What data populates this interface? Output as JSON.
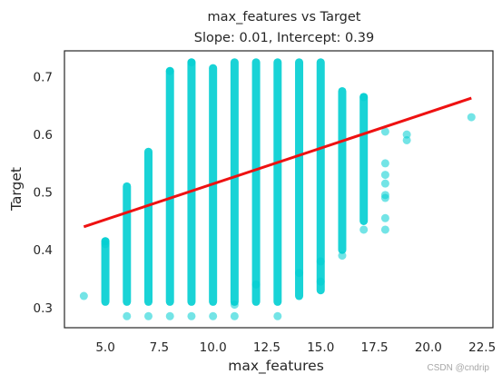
{
  "chart_data": {
    "type": "scatter",
    "title": "max_features vs Target",
    "subtitle": "Slope: 0.01, Intercept: 0.39",
    "xlabel": "max_features",
    "ylabel": "Target",
    "xlim": [
      3.1,
      23.0
    ],
    "ylim": [
      0.265,
      0.745
    ],
    "xticks": [
      5.0,
      7.5,
      10.0,
      12.5,
      15.0,
      17.5,
      20.0,
      22.5
    ],
    "xtick_labels": [
      "5.0",
      "7.5",
      "10.0",
      "12.5",
      "15.0",
      "17.5",
      "20.0",
      "22.5"
    ],
    "yticks": [
      0.3,
      0.4,
      0.5,
      0.6,
      0.7
    ],
    "ytick_labels": [
      "0.3",
      "0.4",
      "0.5",
      "0.6",
      "0.7"
    ],
    "grid": false,
    "point_color": "#00ced1",
    "line_color": "#ee1111",
    "regression": {
      "x": [
        4,
        22
      ],
      "y": [
        0.44,
        0.663
      ]
    },
    "columns": [
      {
        "x": 4,
        "y_min": 0.32,
        "y_max": 0.32
      },
      {
        "x": 5,
        "y_min": 0.31,
        "y_max": 0.415
      },
      {
        "x": 6,
        "y_min": 0.31,
        "y_max": 0.51
      },
      {
        "x": 7,
        "y_min": 0.31,
        "y_max": 0.57
      },
      {
        "x": 8,
        "y_min": 0.31,
        "y_max": 0.71
      },
      {
        "x": 9,
        "y_min": 0.31,
        "y_max": 0.725
      },
      {
        "x": 10,
        "y_min": 0.31,
        "y_max": 0.715
      },
      {
        "x": 11,
        "y_min": 0.31,
        "y_max": 0.725
      },
      {
        "x": 12,
        "y_min": 0.31,
        "y_max": 0.725
      },
      {
        "x": 13,
        "y_min": 0.31,
        "y_max": 0.725
      },
      {
        "x": 14,
        "y_min": 0.32,
        "y_max": 0.725
      },
      {
        "x": 15,
        "y_min": 0.33,
        "y_max": 0.725
      },
      {
        "x": 16,
        "y_min": 0.4,
        "y_max": 0.675
      },
      {
        "x": 17,
        "y_min": 0.45,
        "y_max": 0.665
      }
    ],
    "points": [
      {
        "x": 4,
        "y": 0.32
      },
      {
        "x": 5,
        "y": 0.41
      },
      {
        "x": 5,
        "y": 0.415
      },
      {
        "x": 6,
        "y": 0.285
      },
      {
        "x": 7,
        "y": 0.285
      },
      {
        "x": 8,
        "y": 0.285
      },
      {
        "x": 8,
        "y": 0.71
      },
      {
        "x": 9,
        "y": 0.285
      },
      {
        "x": 9,
        "y": 0.725
      },
      {
        "x": 10,
        "y": 0.285
      },
      {
        "x": 11,
        "y": 0.285
      },
      {
        "x": 11,
        "y": 0.305
      },
      {
        "x": 12,
        "y": 0.34
      },
      {
        "x": 13,
        "y": 0.285
      },
      {
        "x": 14,
        "y": 0.36
      },
      {
        "x": 15,
        "y": 0.345
      },
      {
        "x": 15,
        "y": 0.38
      },
      {
        "x": 16,
        "y": 0.39
      },
      {
        "x": 17,
        "y": 0.435
      },
      {
        "x": 17,
        "y": 0.665
      },
      {
        "x": 18,
        "y": 0.435
      },
      {
        "x": 18,
        "y": 0.455
      },
      {
        "x": 18,
        "y": 0.49
      },
      {
        "x": 18,
        "y": 0.495
      },
      {
        "x": 18,
        "y": 0.515
      },
      {
        "x": 18,
        "y": 0.53
      },
      {
        "x": 18,
        "y": 0.55
      },
      {
        "x": 18,
        "y": 0.605
      },
      {
        "x": 19,
        "y": 0.59
      },
      {
        "x": 19,
        "y": 0.6
      },
      {
        "x": 22,
        "y": 0.63
      }
    ]
  },
  "watermark": "CSDN @cndrip"
}
